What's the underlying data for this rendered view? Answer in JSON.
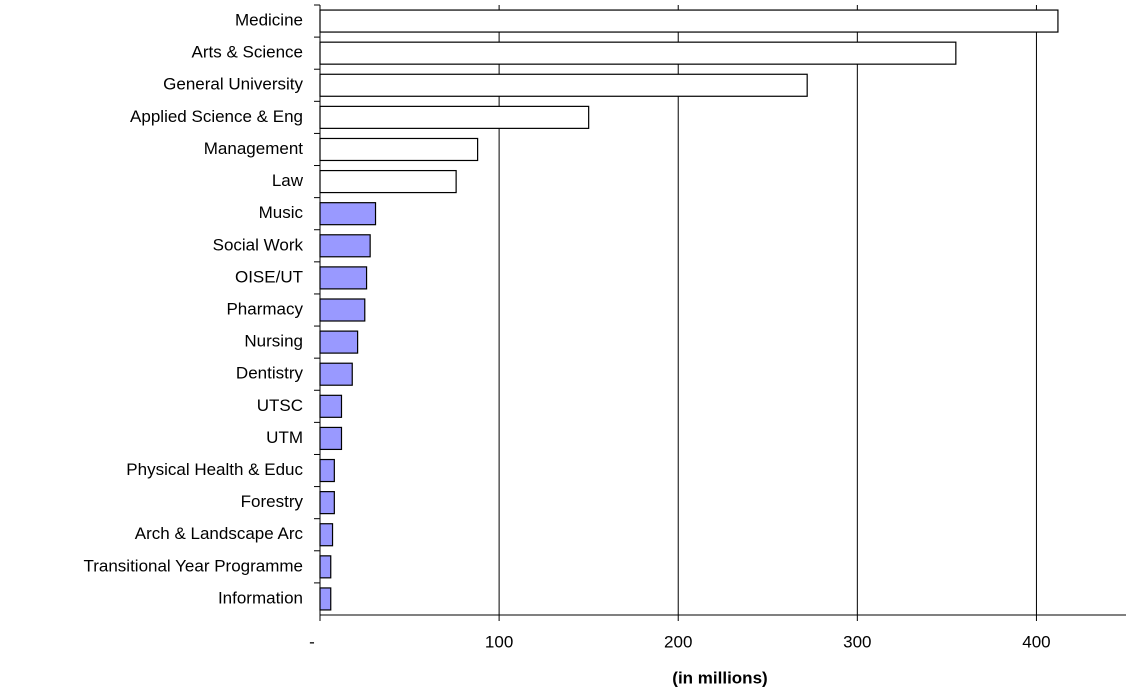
{
  "chart_data": {
    "type": "barh",
    "x_label": "(in millions)",
    "categories": [
      "Medicine",
      "Arts & Science",
      "General University",
      "Applied Science & Eng",
      "Management",
      "Law",
      "Music",
      "Social Work",
      "OISE/UT",
      "Pharmacy",
      "Nursing",
      "Dentistry",
      "UTSC",
      "UTM",
      "Physical Health & Educ",
      "Forestry",
      "Arch & Landscape Arc",
      "Transitional Year Programme",
      "Information"
    ],
    "values": [
      412,
      355,
      272,
      150,
      88,
      76,
      31,
      28,
      26,
      25,
      21,
      18,
      12,
      12,
      8,
      8,
      7,
      6,
      6
    ],
    "colors": [
      "#ffffff",
      "#ffffff",
      "#ffffff",
      "#ffffff",
      "#ffffff",
      "#ffffff",
      "#9999ff",
      "#9999ff",
      "#9999ff",
      "#9999ff",
      "#9999ff",
      "#9999ff",
      "#9999ff",
      "#9999ff",
      "#9999ff",
      "#9999ff",
      "#9999ff",
      "#9999ff",
      "#9999ff"
    ],
    "xlim": [
      0,
      450
    ],
    "xticks": [
      {
        "value": 0,
        "label": "-"
      },
      100,
      200,
      300,
      400
    ],
    "grid": true
  }
}
